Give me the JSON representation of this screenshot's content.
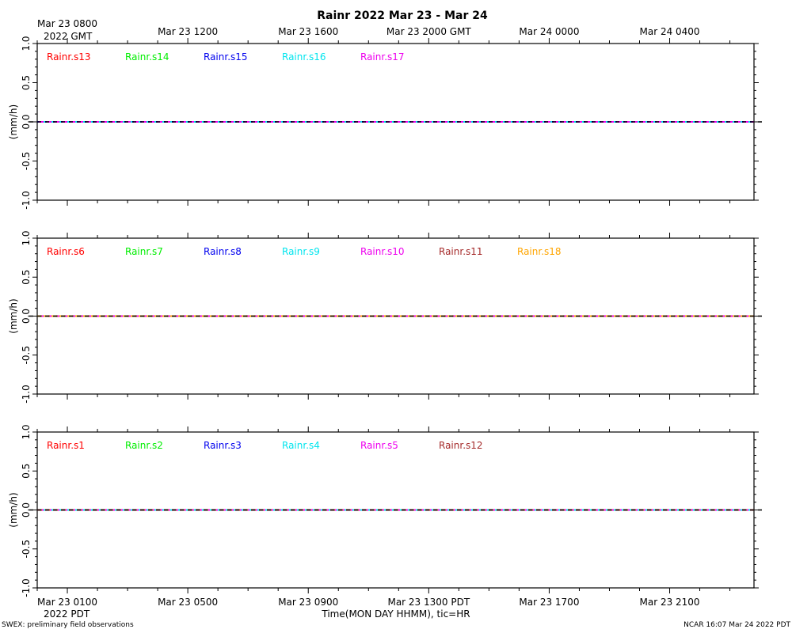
{
  "title": "Rainr 2022 Mar 23 - Mar 24",
  "top_axis": {
    "ticks": [
      "Mar 23 0800",
      "Mar 23 1200",
      "Mar 23 1600",
      "Mar 23 2000 GMT",
      "Mar 24 0000",
      "Mar 24 0400"
    ],
    "year_label": "2022 GMT"
  },
  "bottom_axis": {
    "ticks": [
      "Mar 23 0100",
      "Mar 23 0500",
      "Mar 23 0900",
      "Mar 23 1300 PDT",
      "Mar 23 1700",
      "Mar 23 2100"
    ],
    "year_label": "2022 PDT",
    "xlabel": "Time(MON DAY HHMM), tic=HR"
  },
  "footer": {
    "left": "SWEX: preliminary field observations",
    "right": "NCAR 16:07 Mar 24 2022 PDT"
  },
  "chart_data": [
    {
      "type": "line",
      "ylabel": "(mm/h)",
      "ylim": [
        -1.0,
        1.0
      ],
      "yticks": [
        "1.0",
        "0.5",
        "0.0",
        "-0.5",
        "-1.0"
      ],
      "x_tick_hours": [
        1,
        5,
        9,
        13,
        17,
        21
      ],
      "x_range_hours_pdt": [
        0.0,
        23.8
      ],
      "series": [
        {
          "name": "Rainr.s13",
          "color": "#ff0000",
          "values": [
            0,
            0
          ]
        },
        {
          "name": "Rainr.s14",
          "color": "#00ee00",
          "values": [
            0,
            0
          ]
        },
        {
          "name": "Rainr.s15",
          "color": "#0000ee",
          "values": [
            0,
            0
          ]
        },
        {
          "name": "Rainr.s16",
          "color": "#00e5ee",
          "values": [
            0,
            0
          ]
        },
        {
          "name": "Rainr.s17",
          "color": "#ee00ee",
          "values": [
            0,
            0
          ]
        }
      ]
    },
    {
      "type": "line",
      "ylabel": "(mm/h)",
      "ylim": [
        -1.0,
        1.0
      ],
      "yticks": [
        "1.0",
        "0.5",
        "0.0",
        "-0.5",
        "-1.0"
      ],
      "x_tick_hours": [
        1,
        5,
        9,
        13,
        17,
        21
      ],
      "x_range_hours_pdt": [
        0.0,
        23.8
      ],
      "series": [
        {
          "name": "Rainr.s6",
          "color": "#ff0000",
          "values": [
            0,
            0
          ]
        },
        {
          "name": "Rainr.s7",
          "color": "#00ee00",
          "values": [
            0,
            0
          ]
        },
        {
          "name": "Rainr.s8",
          "color": "#0000ee",
          "values": [
            0,
            0
          ]
        },
        {
          "name": "Rainr.s9",
          "color": "#00e5ee",
          "values": [
            0,
            0
          ]
        },
        {
          "name": "Rainr.s10",
          "color": "#ee00ee",
          "values": [
            0,
            0
          ]
        },
        {
          "name": "Rainr.s11",
          "color": "#a52a2a",
          "values": [
            0,
            0
          ]
        },
        {
          "name": "Rainr.s18",
          "color": "#ffa500",
          "values": [
            0,
            0
          ]
        }
      ]
    },
    {
      "type": "line",
      "ylabel": "(mm/h)",
      "ylim": [
        -1.0,
        1.0
      ],
      "yticks": [
        "1.0",
        "0.5",
        "0.0",
        "-0.5",
        "-1.0"
      ],
      "x_tick_hours": [
        1,
        5,
        9,
        13,
        17,
        21
      ],
      "x_range_hours_pdt": [
        0.0,
        23.8
      ],
      "series": [
        {
          "name": "Rainr.s1",
          "color": "#ff0000",
          "values": [
            0,
            0
          ]
        },
        {
          "name": "Rainr.s2",
          "color": "#00ee00",
          "values": [
            0,
            0
          ]
        },
        {
          "name": "Rainr.s3",
          "color": "#0000ee",
          "values": [
            0,
            0
          ]
        },
        {
          "name": "Rainr.s4",
          "color": "#00e5ee",
          "values": [
            0,
            0
          ]
        },
        {
          "name": "Rainr.s5",
          "color": "#ee00ee",
          "values": [
            0,
            0
          ]
        },
        {
          "name": "Rainr.s12",
          "color": "#a52a2a",
          "values": [
            0,
            0
          ]
        }
      ]
    }
  ]
}
